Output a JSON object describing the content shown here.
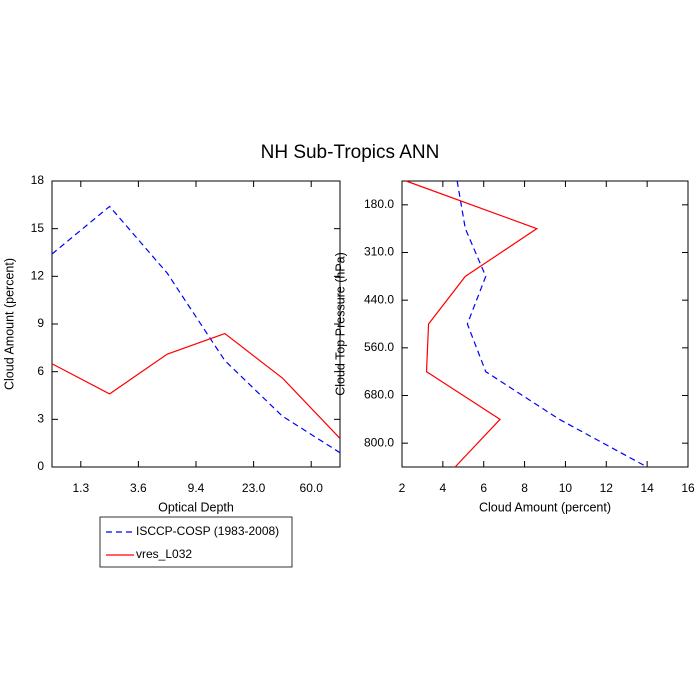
{
  "title": "NH Sub-Tropics ANN",
  "chart_data": [
    {
      "type": "line",
      "orientation": "vertical",
      "x_label": "Optical Depth",
      "y_label": "Cloud Amount (percent)",
      "x": [
        0,
        1,
        2,
        3,
        4,
        5
      ],
      "xlim": [
        0,
        5
      ],
      "xticks": [
        {
          "value": 0.5,
          "label": "1.3"
        },
        {
          "value": 1.5,
          "label": "3.6"
        },
        {
          "value": 2.5,
          "label": "9.4"
        },
        {
          "value": 3.5,
          "label": "23.0"
        },
        {
          "value": 4.5,
          "label": "60.0"
        }
      ],
      "ylim": [
        0,
        18
      ],
      "yticks": [
        0,
        3,
        6,
        9,
        12,
        15,
        18
      ],
      "series": [
        {
          "name": "ISCCP-COSP (1983-2008)",
          "color": "#0000ff",
          "line_style": "dashed",
          "values": [
            13.4,
            16.4,
            12.2,
            6.7,
            3.2,
            0.9
          ]
        },
        {
          "name": "vres_L032",
          "color": "#ff0000",
          "line_style": "solid",
          "values": [
            6.5,
            4.6,
            7.1,
            8.4,
            5.6,
            1.8
          ]
        }
      ]
    },
    {
      "type": "line",
      "orientation": "horizontal",
      "x_label": "Cloud Amount (percent)",
      "y_label": "Cloud Top Pressure (hPa)",
      "y": [
        0,
        1,
        2,
        3,
        4,
        5,
        6
      ],
      "ylim": [
        6,
        0
      ],
      "yticks": [
        {
          "value": 0.5,
          "label": "180.0"
        },
        {
          "value": 1.5,
          "label": "310.0"
        },
        {
          "value": 2.5,
          "label": "440.0"
        },
        {
          "value": 3.5,
          "label": "560.0"
        },
        {
          "value": 4.5,
          "label": "680.0"
        },
        {
          "value": 5.5,
          "label": "800.0"
        }
      ],
      "xlim": [
        2,
        16
      ],
      "xticks": [
        2,
        4,
        6,
        8,
        10,
        12,
        14,
        16
      ],
      "series": [
        {
          "name": "ISCCP-COSP (1983-2008)",
          "color": "#0000ff",
          "line_style": "dashed",
          "values": [
            4.7,
            5.1,
            6.1,
            5.2,
            6.1,
            9.7,
            14.0
          ]
        },
        {
          "name": "vres_L032",
          "color": "#ff0000",
          "line_style": "solid",
          "values": [
            2.2,
            8.6,
            5.1,
            3.3,
            3.2,
            6.8,
            4.6
          ]
        }
      ]
    }
  ]
}
